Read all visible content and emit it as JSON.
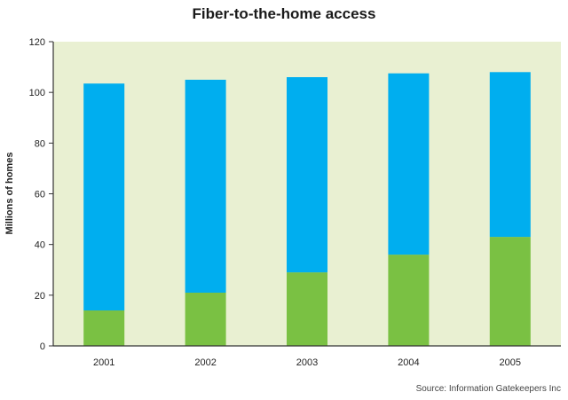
{
  "chart_data": {
    "type": "bar",
    "stacked": true,
    "title": "Fiber-to-the-home access",
    "xlabel": "",
    "ylabel": "Millions of homes",
    "source": "Source: Information Gatekeepers Inc",
    "categories": [
      "2001",
      "2002",
      "2003",
      "2004",
      "2005"
    ],
    "series": [
      {
        "values": [
          14,
          21,
          29,
          36,
          43
        ],
        "color": "#7ac143"
      },
      {
        "values": [
          89.5,
          84,
          77,
          71.5,
          65
        ],
        "color": "#00aeef"
      }
    ],
    "ylim": [
      0,
      120
    ],
    "yticks": [
      "0",
      "20",
      "40",
      "60",
      "80",
      "100",
      "120"
    ],
    "grid": false,
    "plot_background": "#e9f0d2",
    "legend": "none"
  }
}
